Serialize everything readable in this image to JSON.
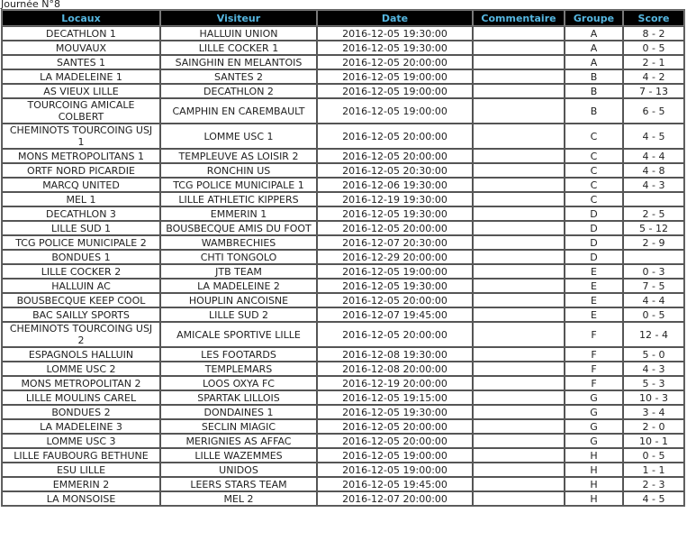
{
  "title": "Journée N°8",
  "columns": [
    "Locaux",
    "Visiteur",
    "Date",
    "Commentaire",
    "Groupe",
    "Score"
  ],
  "rows": [
    [
      "DECATHLON 1",
      "HALLUIN UNION",
      "2016-12-05 19:30:00",
      "",
      "A",
      "8 - 2"
    ],
    [
      "MOUVAUX",
      "LILLE COCKER 1",
      "2016-12-05 19:30:00",
      "",
      "A",
      "0 - 5"
    ],
    [
      "SANTES 1",
      "SAINGHIN EN MELANTOIS",
      "2016-12-05 20:00:00",
      "",
      "A",
      "2 - 1"
    ],
    [
      "LA MADELEINE 1",
      "SANTES 2",
      "2016-12-05 19:00:00",
      "",
      "B",
      "4 - 2"
    ],
    [
      "AS VIEUX LILLE",
      "DECATHLON 2",
      "2016-12-05 19:00:00",
      "",
      "B",
      "7 - 13"
    ],
    [
      "TOURCOING AMICALE COLBERT",
      "CAMPHIN EN CAREMBAULT",
      "2016-12-05 19:00:00",
      "",
      "B",
      "6 - 5"
    ],
    [
      "CHEMINOTS TOURCOING USJ 1",
      "LOMME USC 1",
      "2016-12-05 20:00:00",
      "",
      "C",
      "4 - 5"
    ],
    [
      "MONS METROPOLITANS 1",
      "TEMPLEUVE AS LOISIR 2",
      "2016-12-05 20:00:00",
      "",
      "C",
      "4 - 4"
    ],
    [
      "ORTF NORD PICARDIE",
      "RONCHIN US",
      "2016-12-05 20:30:00",
      "",
      "C",
      "4 - 8"
    ],
    [
      "MARCQ UNITED",
      "TCG POLICE MUNICIPALE 1",
      "2016-12-06 19:30:00",
      "",
      "C",
      "4 - 3"
    ],
    [
      "MEL 1",
      "LILLE ATHLETIC KIPPERS",
      "2016-12-19 19:30:00",
      "",
      "C",
      ""
    ],
    [
      "DECATHLON 3",
      "EMMERIN 1",
      "2016-12-05 19:30:00",
      "",
      "D",
      "2 - 5"
    ],
    [
      "LILLE SUD 1",
      "BOUSBECQUE AMIS DU FOOT",
      "2016-12-05 20:00:00",
      "",
      "D",
      "5 - 12"
    ],
    [
      "TCG POLICE MUNICIPALE 2",
      "WAMBRECHIES",
      "2016-12-07 20:30:00",
      "",
      "D",
      "2 - 9"
    ],
    [
      "BONDUES 1",
      "CHTI TONGOLO",
      "2016-12-29 20:00:00",
      "",
      "D",
      ""
    ],
    [
      "LILLE COCKER 2",
      "JTB TEAM",
      "2016-12-05 19:00:00",
      "",
      "E",
      "0 - 3"
    ],
    [
      "HALLUIN AC",
      "LA MADELEINE 2",
      "2016-12-05 19:30:00",
      "",
      "E",
      "7 - 5"
    ],
    [
      "BOUSBECQUE KEEP COOL",
      "HOUPLIN ANCOISNE",
      "2016-12-05 20:00:00",
      "",
      "E",
      "4 - 4"
    ],
    [
      "BAC SAILLY SPORTS",
      "LILLE SUD 2",
      "2016-12-07 19:45:00",
      "",
      "E",
      "0 - 5"
    ],
    [
      "CHEMINOTS TOURCOING USJ 2",
      "AMICALE SPORTIVE LILLE",
      "2016-12-05 20:00:00",
      "",
      "F",
      "12 - 4"
    ],
    [
      "ESPAGNOLS HALLUIN",
      "LES FOOTARDS",
      "2016-12-08 19:30:00",
      "",
      "F",
      "5 - 0"
    ],
    [
      "LOMME USC 2",
      "TEMPLEMARS",
      "2016-12-08 20:00:00",
      "",
      "F",
      "4 - 3"
    ],
    [
      "MONS METROPOLITAN 2",
      "LOOS OXYA FC",
      "2016-12-19 20:00:00",
      "",
      "F",
      "5 - 3"
    ],
    [
      "LILLE MOULINS CAREL",
      "SPARTAK LILLOIS",
      "2016-12-05 19:15:00",
      "",
      "G",
      "10 - 3"
    ],
    [
      "BONDUES 2",
      "DONDAINES 1",
      "2016-12-05 19:30:00",
      "",
      "G",
      "3 - 4"
    ],
    [
      "LA MADELEINE 3",
      "SECLIN MIAGIC",
      "2016-12-05 20:00:00",
      "",
      "G",
      "2 - 0"
    ],
    [
      "LOMME USC 3",
      "MERIGNIES AS AFFAC",
      "2016-12-05 20:00:00",
      "",
      "G",
      "10 - 1"
    ],
    [
      "LILLE FAUBOURG BETHUNE",
      "LILLE WAZEMMES",
      "2016-12-05 19:00:00",
      "",
      "H",
      "0 - 5"
    ],
    [
      "ESU LILLE",
      "UNIDOS",
      "2016-12-05 19:00:00",
      "",
      "H",
      "1 - 1"
    ],
    [
      "EMMERIN 2",
      "LEERS STARS TEAM",
      "2016-12-05 19:45:00",
      "",
      "H",
      "2 - 3"
    ],
    [
      "LA MONSOISE",
      "MEL 2",
      "2016-12-07 20:00:00",
      "",
      "H",
      "4 - 5"
    ]
  ]
}
